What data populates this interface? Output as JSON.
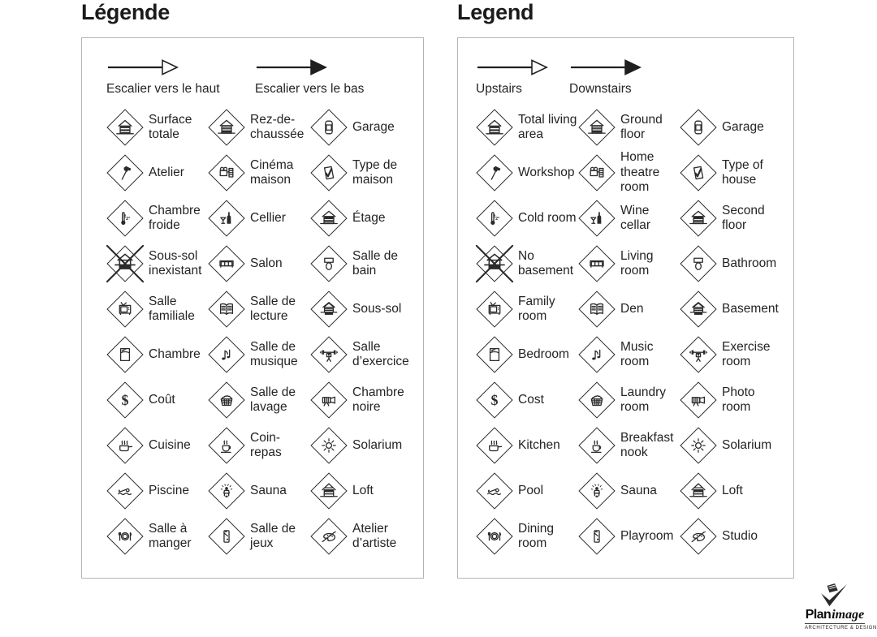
{
  "colors": {
    "text": "#242424",
    "icon_stroke": "#2a2a2a",
    "panel_border": "#b4b4b4",
    "background": "#ffffff"
  },
  "panels": [
    {
      "title": "Légende",
      "stairs": [
        {
          "label": "Escalier vers le haut",
          "icon": "stairs-up-arrow-icon",
          "style": "outline"
        },
        {
          "label": "Escalier vers le bas",
          "icon": "stairs-down-arrow-icon",
          "style": "filled"
        }
      ],
      "items": [
        {
          "icon": "total-area-icon",
          "label": "Surface totale"
        },
        {
          "icon": "ground-floor-icon",
          "label": "Rez-de-chaussée"
        },
        {
          "icon": "garage-icon",
          "label": "Garage"
        },
        {
          "icon": "workshop-icon",
          "label": "Atelier"
        },
        {
          "icon": "home-theatre-icon",
          "label": "Cinéma maison"
        },
        {
          "icon": "type-of-house-icon",
          "label": "Type de maison"
        },
        {
          "icon": "cold-room-icon",
          "label": "Chambre froide"
        },
        {
          "icon": "wine-cellar-icon",
          "label": "Cellier"
        },
        {
          "icon": "second-floor-icon",
          "label": "Étage"
        },
        {
          "icon": "no-basement-icon",
          "label": "Sous-sol inexistant"
        },
        {
          "icon": "living-room-icon",
          "label": "Salon"
        },
        {
          "icon": "bathroom-icon",
          "label": "Salle de bain"
        },
        {
          "icon": "family-room-icon",
          "label": "Salle familiale"
        },
        {
          "icon": "den-icon",
          "label": "Salle de lecture"
        },
        {
          "icon": "basement-icon",
          "label": "Sous-sol"
        },
        {
          "icon": "bedroom-icon",
          "label": "Chambre"
        },
        {
          "icon": "music-room-icon",
          "label": "Salle de musique"
        },
        {
          "icon": "exercise-room-icon",
          "label": "Salle d’exercice"
        },
        {
          "icon": "cost-icon",
          "label": "Coût"
        },
        {
          "icon": "laundry-room-icon",
          "label": "Salle de lavage"
        },
        {
          "icon": "photo-room-icon",
          "label": "Chambre noire"
        },
        {
          "icon": "kitchen-icon",
          "label": "Cuisine"
        },
        {
          "icon": "breakfast-nook-icon",
          "label": "Coin-repas"
        },
        {
          "icon": "solarium-icon",
          "label": "Solarium"
        },
        {
          "icon": "pool-icon",
          "label": "Piscine"
        },
        {
          "icon": "sauna-icon",
          "label": "Sauna"
        },
        {
          "icon": "loft-icon",
          "label": "Loft"
        },
        {
          "icon": "dining-room-icon",
          "label": "Salle à manger"
        },
        {
          "icon": "playroom-icon",
          "label": "Salle de jeux"
        },
        {
          "icon": "studio-icon",
          "label": "Atelier d’artiste"
        }
      ]
    },
    {
      "title": "Legend",
      "stairs": [
        {
          "label": "Upstairs",
          "icon": "stairs-up-arrow-icon",
          "style": "outline"
        },
        {
          "label": "Downstairs",
          "icon": "stairs-down-arrow-icon",
          "style": "filled"
        }
      ],
      "items": [
        {
          "icon": "total-area-icon",
          "label": "Total living area"
        },
        {
          "icon": "ground-floor-icon",
          "label": "Ground floor"
        },
        {
          "icon": "garage-icon",
          "label": "Garage"
        },
        {
          "icon": "workshop-icon",
          "label": "Workshop"
        },
        {
          "icon": "home-theatre-icon",
          "label": "Home theatre room"
        },
        {
          "icon": "type-of-house-icon",
          "label": "Type of house"
        },
        {
          "icon": "cold-room-icon",
          "label": "Cold room"
        },
        {
          "icon": "wine-cellar-icon",
          "label": "Wine cellar"
        },
        {
          "icon": "second-floor-icon",
          "label": "Second floor"
        },
        {
          "icon": "no-basement-icon",
          "label": "No basement"
        },
        {
          "icon": "living-room-icon",
          "label": "Living room"
        },
        {
          "icon": "bathroom-icon",
          "label": "Bathroom"
        },
        {
          "icon": "family-room-icon",
          "label": "Family room"
        },
        {
          "icon": "den-icon",
          "label": "Den"
        },
        {
          "icon": "basement-icon",
          "label": "Basement"
        },
        {
          "icon": "bedroom-icon",
          "label": "Bedroom"
        },
        {
          "icon": "music-room-icon",
          "label": "Music room"
        },
        {
          "icon": "exercise-room-icon",
          "label": "Exercise room"
        },
        {
          "icon": "cost-icon",
          "label": "Cost"
        },
        {
          "icon": "laundry-room-icon",
          "label": "Laundry room"
        },
        {
          "icon": "photo-room-icon",
          "label": "Photo room"
        },
        {
          "icon": "kitchen-icon",
          "label": "Kitchen"
        },
        {
          "icon": "breakfast-nook-icon",
          "label": "Breakfast nook"
        },
        {
          "icon": "solarium-icon",
          "label": "Solarium"
        },
        {
          "icon": "pool-icon",
          "label": "Pool"
        },
        {
          "icon": "sauna-icon",
          "label": "Sauna"
        },
        {
          "icon": "loft-icon",
          "label": "Loft"
        },
        {
          "icon": "dining-room-icon",
          "label": "Dining room"
        },
        {
          "icon": "playroom-icon",
          "label": "Playroom"
        },
        {
          "icon": "studio-icon",
          "label": "Studio"
        }
      ]
    }
  ],
  "logo": {
    "brand_bold": "Plan",
    "brand_italic": "image",
    "tagline": "ARCHITECTURE & DESIGN",
    "icon": "planimage-emblem-icon"
  }
}
